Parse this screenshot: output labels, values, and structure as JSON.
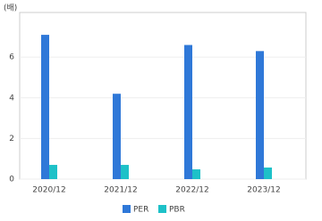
{
  "chart_data": {
    "type": "bar",
    "unit": "(배)",
    "categories": [
      "2020/12",
      "2021/12",
      "2022/12",
      "2023/12"
    ],
    "series": [
      {
        "name": "PER",
        "color": "#2f78d8",
        "values": [
          7.1,
          4.2,
          6.6,
          6.3
        ]
      },
      {
        "name": "PBR",
        "color": "#1ec1c8",
        "values": [
          0.7,
          0.7,
          0.48,
          0.57
        ]
      }
    ],
    "ylim": [
      0,
      8.2
    ],
    "yticks": [
      0,
      2,
      4,
      6
    ],
    "grid": true,
    "legend": "bottom"
  }
}
